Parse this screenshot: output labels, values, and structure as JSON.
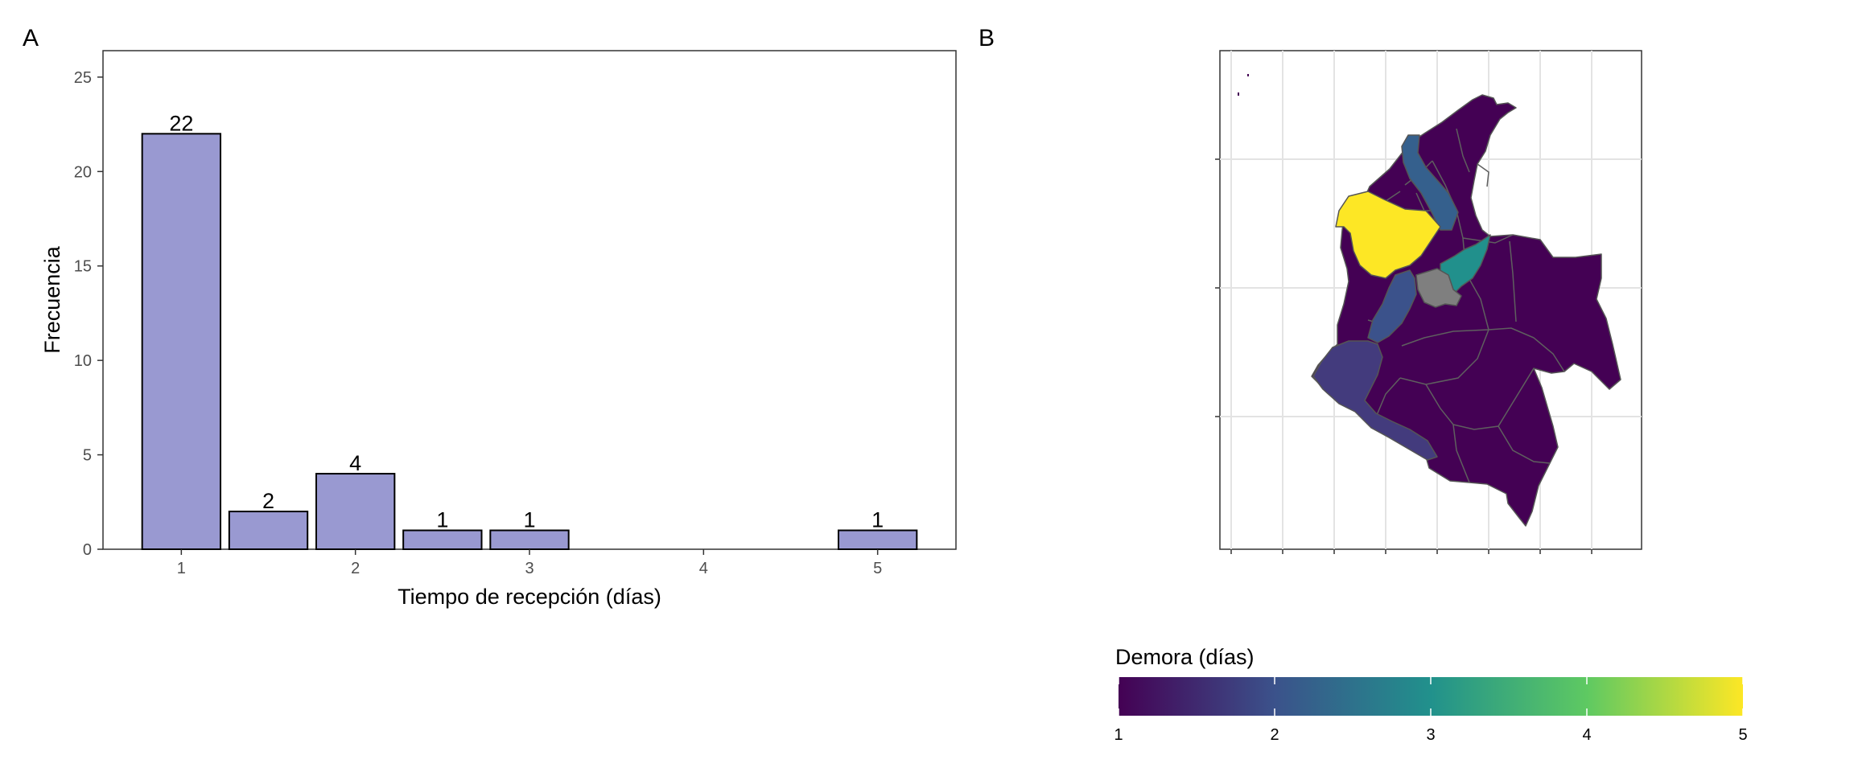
{
  "panels": {
    "a_label": "A",
    "b_label": "B"
  },
  "chart_data": [
    {
      "type": "bar",
      "x": [
        1,
        1.5,
        2,
        2.5,
        3,
        5
      ],
      "values": [
        22,
        2,
        4,
        1,
        1,
        1
      ],
      "data_labels": [
        "22",
        "2",
        "4",
        "1",
        "1",
        "1"
      ],
      "xlabel": "Tiempo de recepción (días)",
      "ylabel": "Frecuencia",
      "xticks": [
        1,
        2,
        3,
        4,
        5
      ],
      "yticks": [
        0,
        5,
        10,
        15,
        20,
        25
      ],
      "xlim": [
        0.55,
        5.45
      ],
      "ylim": [
        0,
        26.4
      ],
      "bar_width": 0.45,
      "bar_color": "#9999d1",
      "bar_edge_color": "#000000",
      "grid": false
    },
    {
      "type": "heatmap",
      "subtype": "choropleth-map",
      "region": "Colombia",
      "legend_title": "Demora (días)",
      "colorbar_ticks": [
        1,
        2,
        3,
        4,
        5
      ],
      "colorbar_range": [
        1,
        5
      ],
      "colormap": "viridis",
      "colormap_stops": [
        "#440154",
        "#3b528b",
        "#21918c",
        "#5ec962",
        "#fde725"
      ],
      "missing_color": "#7f7f7f",
      "legend_position": "bottom",
      "grid": true
    }
  ]
}
